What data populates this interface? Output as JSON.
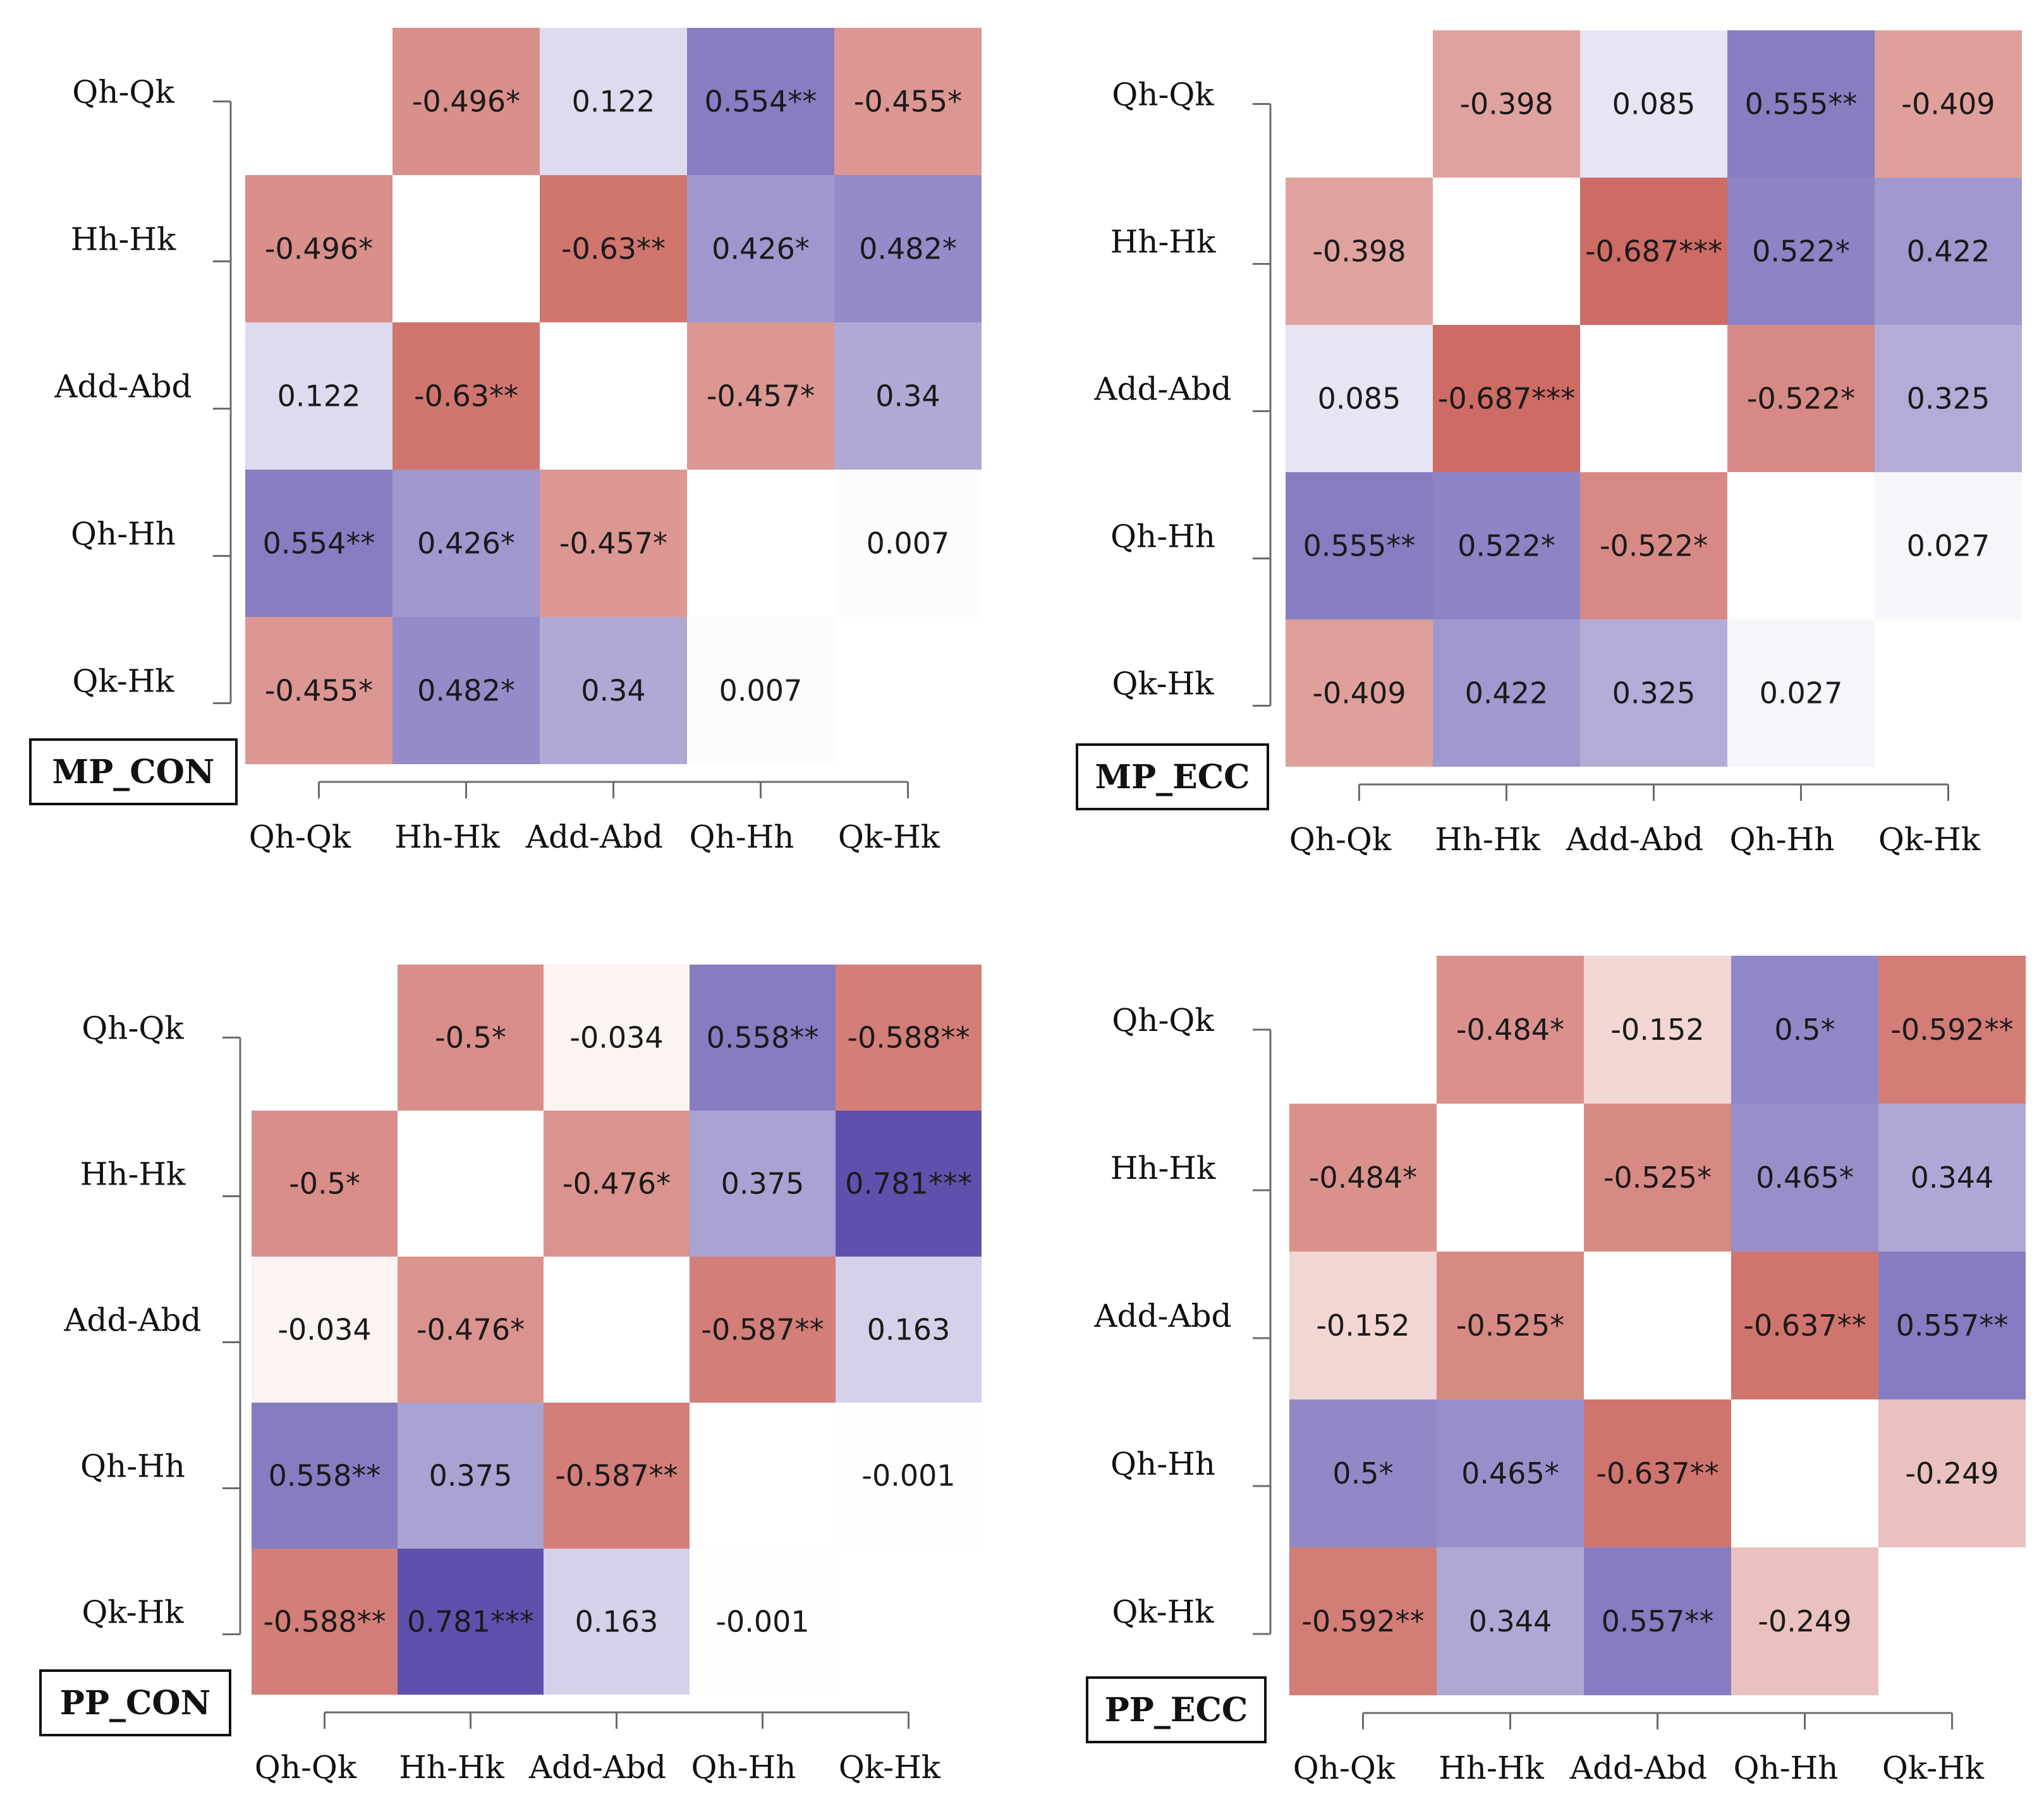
{
  "colors": {
    "negative": "#c6574f",
    "positive": "#5b4dab",
    "neutral": "#ffffff"
  },
  "chart_data": [
    {
      "type": "heatmap",
      "title": "MP_CON",
      "row_labels": [
        "Qh-Qk",
        "Hh-Hk",
        "Add-Abd",
        "Qh-Hh",
        "Qk-Hk"
      ],
      "col_labels": [
        "Qh-Qk",
        "Hh-Hk",
        "Add-Abd",
        "Qh-Hh",
        "Qk-Hk"
      ],
      "values": [
        [
          null,
          -0.496,
          0.122,
          0.554,
          -0.455
        ],
        [
          -0.496,
          null,
          -0.63,
          0.426,
          0.482
        ],
        [
          0.122,
          -0.63,
          null,
          -0.457,
          0.34
        ],
        [
          0.554,
          0.426,
          -0.457,
          null,
          0.007
        ],
        [
          -0.455,
          0.482,
          0.34,
          0.007,
          null
        ]
      ],
      "cell_labels": [
        [
          "",
          "-0.496*",
          "0.122",
          "0.554**",
          "-0.455*"
        ],
        [
          "-0.496*",
          "",
          "-0.63**",
          "0.426*",
          "0.482*"
        ],
        [
          "0.122",
          "-0.63**",
          "",
          "-0.457*",
          "0.34"
        ],
        [
          "0.554**",
          "0.426*",
          "-0.457*",
          "",
          "0.007"
        ],
        [
          "-0.455*",
          "0.482*",
          "0.34",
          "0.007",
          ""
        ]
      ],
      "color_range": [
        -0.8,
        0.8
      ]
    },
    {
      "type": "heatmap",
      "title": "MP_ECC",
      "row_labels": [
        "Qh-Qk",
        "Hh-Hk",
        "Add-Abd",
        "Qh-Hh",
        "Qk-Hk"
      ],
      "col_labels": [
        "Qh-Qk",
        "Hh-Hk",
        "Add-Abd",
        "Qh-Hh",
        "Qk-Hk"
      ],
      "values": [
        [
          null,
          -0.398,
          0.085,
          0.555,
          -0.409
        ],
        [
          -0.398,
          null,
          -0.687,
          0.522,
          0.422
        ],
        [
          0.085,
          -0.687,
          null,
          -0.522,
          0.325
        ],
        [
          0.555,
          0.522,
          -0.522,
          null,
          0.027
        ],
        [
          -0.409,
          0.422,
          0.325,
          0.027,
          null
        ]
      ],
      "cell_labels": [
        [
          "",
          "-0.398",
          "0.085",
          "0.555**",
          "-0.409"
        ],
        [
          "-0.398",
          "",
          "-0.687***",
          "0.522*",
          "0.422"
        ],
        [
          "0.085",
          "-0.687***",
          "",
          "-0.522*",
          "0.325"
        ],
        [
          "0.555**",
          "0.522*",
          "-0.522*",
          "",
          "0.027"
        ],
        [
          "-0.409",
          "0.422",
          "0.325",
          "0.027",
          ""
        ]
      ],
      "color_range": [
        -0.8,
        0.8
      ]
    },
    {
      "type": "heatmap",
      "title": "PP_CON",
      "row_labels": [
        "Qh-Qk",
        "Hh-Hk",
        "Add-Abd",
        "Qh-Hh",
        "Qk-Hk"
      ],
      "col_labels": [
        "Qh-Qk",
        "Hh-Hk",
        "Add-Abd",
        "Qh-Hh",
        "Qk-Hk"
      ],
      "values": [
        [
          null,
          -0.5,
          -0.034,
          0.558,
          -0.588
        ],
        [
          -0.5,
          null,
          -0.476,
          0.375,
          0.781
        ],
        [
          -0.034,
          -0.476,
          null,
          -0.587,
          0.163
        ],
        [
          0.558,
          0.375,
          -0.587,
          null,
          -0.001
        ],
        [
          -0.588,
          0.781,
          0.163,
          -0.001,
          null
        ]
      ],
      "cell_labels": [
        [
          "",
          "-0.5*",
          "-0.034",
          "0.558**",
          "-0.588**"
        ],
        [
          "-0.5*",
          "",
          "-0.476*",
          "0.375",
          "0.781***"
        ],
        [
          "-0.034",
          "-0.476*",
          "",
          "-0.587**",
          "0.163"
        ],
        [
          "0.558**",
          "0.375",
          "-0.587**",
          "",
          "-0.001"
        ],
        [
          "-0.588**",
          "0.781***",
          "0.163",
          "-0.001",
          ""
        ]
      ],
      "color_range": [
        -0.8,
        0.8
      ]
    },
    {
      "type": "heatmap",
      "title": "PP_ECC",
      "row_labels": [
        "Qh-Qk",
        "Hh-Hk",
        "Add-Abd",
        "Qh-Hh",
        "Qk-Hk"
      ],
      "col_labels": [
        "Qh-Qk",
        "Hh-Hk",
        "Add-Abd",
        "Qh-Hh",
        "Qk-Hk"
      ],
      "values": [
        [
          null,
          -0.484,
          -0.152,
          0.5,
          -0.592
        ],
        [
          -0.484,
          null,
          -0.525,
          0.465,
          0.344
        ],
        [
          -0.152,
          -0.525,
          null,
          -0.637,
          0.557
        ],
        [
          0.5,
          0.465,
          -0.637,
          null,
          -0.249
        ],
        [
          -0.592,
          0.344,
          0.557,
          -0.249,
          null
        ]
      ],
      "cell_labels": [
        [
          "",
          "-0.484*",
          "-0.152",
          "0.5*",
          "-0.592**"
        ],
        [
          "-0.484*",
          "",
          "-0.525*",
          "0.465*",
          "0.344"
        ],
        [
          "-0.152",
          "-0.525*",
          "",
          "-0.637**",
          "0.557**"
        ],
        [
          "0.5*",
          "0.465*",
          "-0.637**",
          "",
          "-0.249"
        ],
        [
          "-0.592**",
          "0.344",
          "0.557**",
          "-0.249",
          ""
        ]
      ],
      "color_range": [
        -0.8,
        0.8
      ]
    }
  ]
}
